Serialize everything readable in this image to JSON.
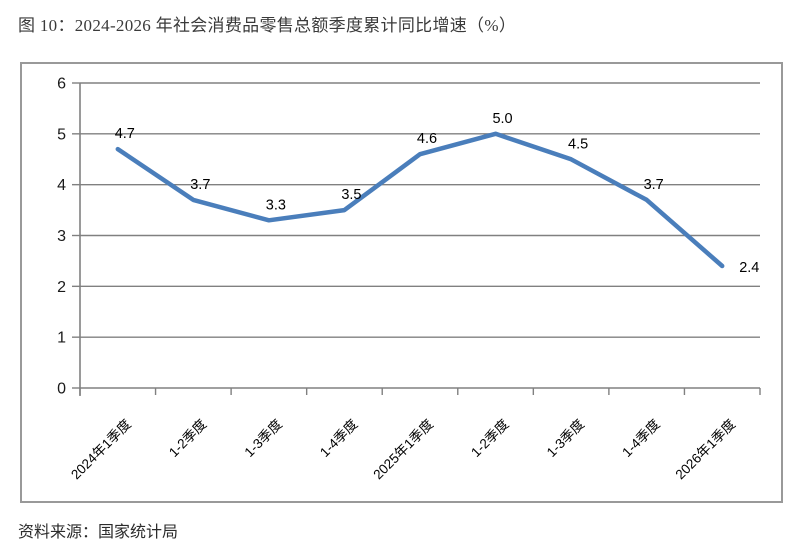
{
  "page": {
    "title": "图 10：2024-2026 年社会消费品零售总额季度累计同比增速（%）",
    "source": "资料来源：国家统计局"
  },
  "chart_data": {
    "type": "line",
    "title": "",
    "xlabel": "",
    "ylabel": "",
    "categories": [
      "2024年1季度",
      "1-2季度",
      "1-3季度",
      "1-4季度",
      "2025年1季度",
      "1-2季度",
      "1-3季度",
      "1-4季度",
      "2026年1季度"
    ],
    "values": [
      4.7,
      3.7,
      3.3,
      3.5,
      4.6,
      5.0,
      4.5,
      3.7,
      2.4
    ],
    "data_labels": [
      "4.7",
      "3.7",
      "3.3",
      "3.5",
      "4.6",
      "5.0",
      "4.5",
      "3.7",
      "2.4"
    ],
    "ylim": [
      0,
      6
    ],
    "ytick_step": 1,
    "grid": true,
    "legend": "none",
    "colors": {
      "line": "#4a7ebb",
      "grid": "#808080",
      "axis": "#808080",
      "frame_border": "#999999",
      "tick_label": "#1a1a1a",
      "data_label": "#000000",
      "background": "#ffffff"
    }
  }
}
